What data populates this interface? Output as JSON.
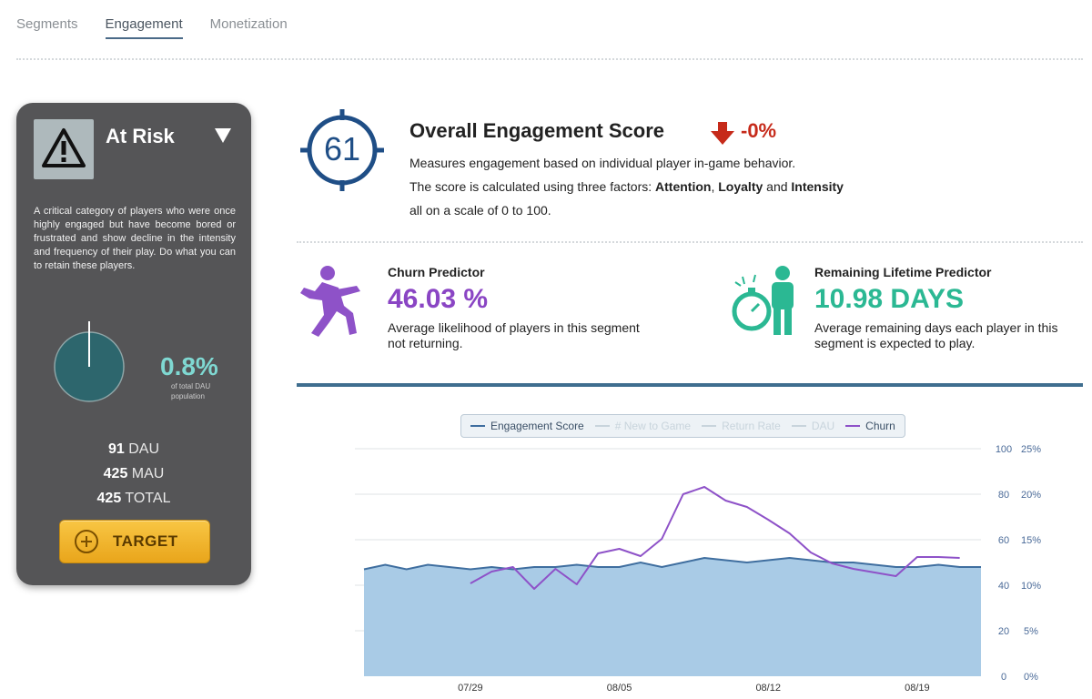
{
  "tabs": [
    {
      "label": "Segments"
    },
    {
      "label": "Engagement"
    },
    {
      "label": "Monetization"
    }
  ],
  "segment": {
    "title": "At Risk",
    "description": "A critical category of players who were once highly engaged but have become bored or frustrated and show decline in the intensity and frequency of their play. Do what you can to retain these players.",
    "percent": "0.8%",
    "percent_label": "of total DAU population",
    "dau_value": "91",
    "dau_label": "DAU",
    "mau_value": "425",
    "mau_label": "MAU",
    "total_value": "425",
    "total_label": "TOTAL",
    "target_label": "TARGET"
  },
  "score": {
    "value": "61",
    "title": "Overall Engagement Score",
    "delta": "-0%",
    "desc_line1": "Measures engagement based on individual player in-game behavior.",
    "desc_line2_prefix": "The score is calculated using three factors: ",
    "factor1": "Attention",
    "sep1": ", ",
    "factor2": "Loyalty",
    "sep2": " and ",
    "factor3": "Intensity",
    "desc_line3": "all on a scale of 0 to 100."
  },
  "churn": {
    "title": "Churn Predictor",
    "value": "46.03 %",
    "desc": "Average likelihood of players in this segment not returning."
  },
  "lifetime": {
    "title": "Remaining Lifetime Predictor",
    "value": "10.98 DAYS",
    "desc": "Average remaining days each player in this segment is expected to play."
  },
  "colors": {
    "engagement": "#3f6e9f",
    "engagement_fill": "#a9cbe6",
    "churn": "#8e52c8",
    "disabled": "#c8d4dc"
  },
  "chart_data": {
    "type": "area",
    "legend": [
      {
        "name": "Engagement Score",
        "active": true
      },
      {
        "name": "# New to Game",
        "active": false
      },
      {
        "name": "Return Rate",
        "active": false
      },
      {
        "name": "DAU",
        "active": false
      },
      {
        "name": "Churn",
        "active": true
      }
    ],
    "x_ticks": [
      "07/29",
      "08/05",
      "08/12",
      "08/19"
    ],
    "x_tick_index": [
      5,
      12,
      19,
      26
    ],
    "y_left_ticks": [
      "0",
      "20",
      "40",
      "60",
      "80",
      "100"
    ],
    "y_right_ticks": [
      "0%",
      "5%",
      "10%",
      "15%",
      "20%",
      "25%"
    ],
    "y_left_range": [
      0,
      100
    ],
    "y_right_range": [
      0,
      25
    ],
    "x_count": 30,
    "series": [
      {
        "name": "Engagement Score",
        "axis": "left",
        "values": [
          47,
          49,
          47,
          49,
          48,
          47,
          48,
          47,
          48,
          48,
          49,
          48,
          48,
          50,
          48,
          50,
          52,
          51,
          50,
          51,
          52,
          51,
          50,
          50,
          49,
          48,
          48,
          49,
          48,
          48
        ]
      },
      {
        "name": "Churn",
        "axis": "right",
        "start_index": 5,
        "values": [
          10.2,
          11.5,
          12.0,
          9.6,
          11.8,
          10.1,
          13.5,
          14.0,
          13.2,
          15.1,
          20.0,
          20.8,
          19.3,
          18.6,
          17.2,
          15.7,
          13.6,
          12.4,
          11.8,
          11.4,
          11.0,
          13.1,
          13.1,
          13.0
        ]
      }
    ]
  }
}
